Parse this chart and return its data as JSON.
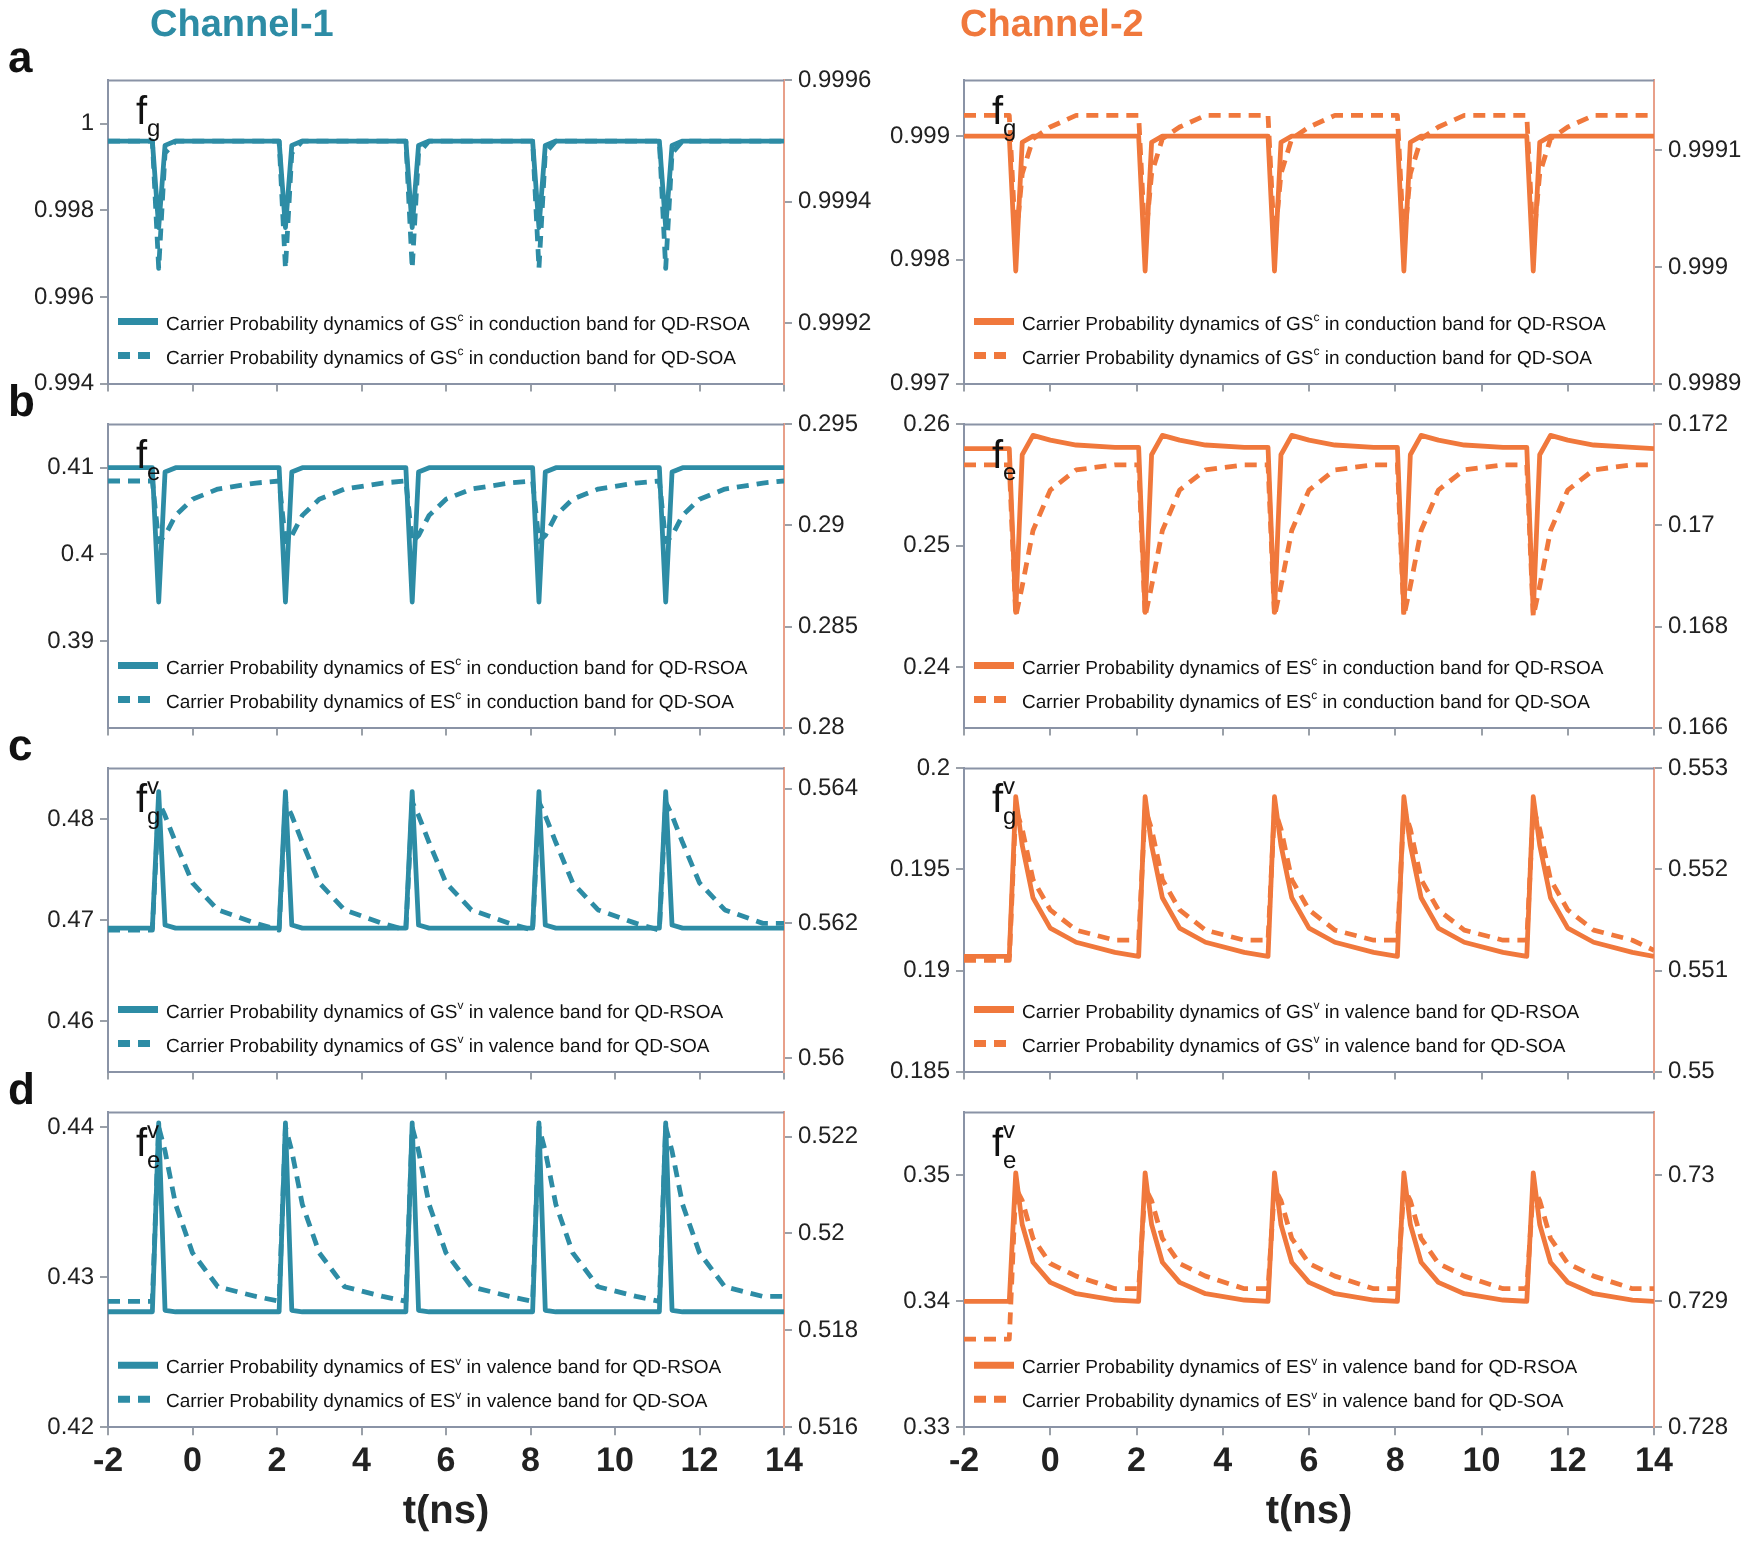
{
  "chart_data": [
    {
      "type": "line",
      "title": "Channel-1",
      "annotations": [
        "a",
        "f$_{g}$"
      ],
      "legend": "bottom left",
      "tick_labels": "y",
      "x": [
        -2,
        -0.95,
        -0.8,
        -0.65,
        -0.4,
        0,
        0.6,
        1.5,
        2.05,
        2.2,
        2.35,
        2.6,
        3,
        3.6,
        4.5,
        5.05,
        5.2,
        5.35,
        5.6,
        6,
        6.6,
        7.5,
        8.05,
        8.2,
        8.35,
        8.6,
        9,
        9.6,
        10.5,
        11.05,
        11.2,
        11.35,
        11.6,
        12,
        12.6,
        13.5,
        14
      ],
      "xlim": [
        -2,
        14
      ],
      "xticks": [
        -2,
        0,
        2,
        4,
        6,
        8,
        10,
        12,
        14
      ],
      "ylim": [
        0.994,
        1.001
      ],
      "yticks": [
        0.994,
        0.996,
        0.998,
        1
      ],
      "y2lim": [
        0.9991,
        0.9996
      ],
      "y2ticks": [
        0.9992,
        0.9994,
        0.9996
      ],
      "series": [
        {
          "name": "Carrier Probability dynamics of GS$^{c}$ in conduction band for QD-RSOA",
          "color": "#2d8ca5",
          "line_style": "solid",
          "values": [
            0.9996,
            0.9996,
            0.9976,
            0.9995,
            0.9996,
            0.9996,
            0.9996,
            0.9996,
            0.9996,
            0.9976,
            0.9995,
            0.9996,
            0.9996,
            0.9996,
            0.9996,
            0.9996,
            0.9976,
            0.9995,
            0.9996,
            0.9996,
            0.9996,
            0.9996,
            0.9996,
            0.9976,
            0.9995,
            0.9996,
            0.9996,
            0.9996,
            0.9996,
            0.9996,
            0.9976,
            0.9995,
            0.9996,
            0.9996,
            0.9996,
            0.9996,
            0.9996
          ]
        },
        {
          "name": "Carrier Probability dynamics of GS$^{c}$ in conduction band for QD-SOA",
          "color": "#2d8ca5",
          "line_style": "dashed",
          "axis": "y2",
          "values": [
            0.9995,
            0.9995,
            0.99929,
            0.99948,
            0.9995,
            0.9995,
            0.9995,
            0.9995,
            0.9995,
            0.99929,
            0.99948,
            0.9995,
            0.9995,
            0.9995,
            0.9995,
            0.9995,
            0.99929,
            0.99948,
            0.9995,
            0.9995,
            0.9995,
            0.9995,
            0.9995,
            0.99929,
            0.99948,
            0.9995,
            0.9995,
            0.9995,
            0.9995,
            0.9995,
            0.99929,
            0.99948,
            0.9995,
            0.9995,
            0.9995,
            0.9995,
            0.9995
          ]
        }
      ]
    },
    {
      "type": "line",
      "title": "Channel-2",
      "annotations": [
        "f$_{g}$"
      ],
      "legend": "bottom left",
      "tick_labels": "y",
      "x": [
        -2,
        -0.95,
        -0.8,
        -0.65,
        -0.4,
        0,
        0.6,
        1.5,
        2.05,
        2.2,
        2.35,
        2.6,
        3,
        3.6,
        4.5,
        5.05,
        5.2,
        5.35,
        5.6,
        6,
        6.6,
        7.5,
        8.05,
        8.2,
        8.35,
        8.6,
        9,
        9.6,
        10.5,
        11.05,
        11.2,
        11.35,
        11.6,
        12,
        12.6,
        13.5,
        14
      ],
      "xlim": [
        -2,
        14
      ],
      "xticks": [
        -2,
        0,
        2,
        4,
        6,
        8,
        10,
        12,
        14
      ],
      "ylim": [
        0.997,
        0.99945
      ],
      "yticks": [
        0.997,
        0.998,
        0.999
      ],
      "y2lim": [
        0.9989,
        0.99916
      ],
      "y2ticks": [
        0.9989,
        0.999,
        0.9991
      ],
      "series": [
        {
          "name": "Carrier Probability dynamics of GS$^{c}$ in conduction band for QD-RSOA",
          "color": "#f0783c",
          "line_style": "solid",
          "values": [
            0.999,
            0.999,
            0.99791,
            0.99895,
            0.999,
            0.999,
            0.999,
            0.999,
            0.999,
            0.99791,
            0.99895,
            0.999,
            0.999,
            0.999,
            0.999,
            0.999,
            0.99791,
            0.99895,
            0.999,
            0.999,
            0.999,
            0.999,
            0.999,
            0.99791,
            0.99895,
            0.999,
            0.999,
            0.999,
            0.999,
            0.999,
            0.99791,
            0.99895,
            0.999,
            0.999,
            0.999,
            0.999,
            0.999
          ]
        },
        {
          "name": "Carrier Probability dynamics of GS$^{c}$ in conduction band for QD-SOA",
          "color": "#f0783c",
          "line_style": "dashed",
          "axis": "y2",
          "values": [
            0.99913,
            0.99913,
            0.99902,
            0.99908,
            0.99911,
            0.99912,
            0.99913,
            0.99913,
            0.99913,
            0.99902,
            0.99908,
            0.99911,
            0.99912,
            0.99913,
            0.99913,
            0.99913,
            0.99902,
            0.99908,
            0.99911,
            0.99912,
            0.99913,
            0.99913,
            0.99913,
            0.99902,
            0.99908,
            0.99911,
            0.99912,
            0.99913,
            0.99913,
            0.99913,
            0.99902,
            0.99908,
            0.99911,
            0.99912,
            0.99913,
            0.99913,
            0.99913
          ]
        }
      ]
    },
    {
      "type": "line",
      "annotations": [
        "b",
        "f$_{e}$"
      ],
      "legend": "bottom left",
      "tick_labels": "y",
      "x": [
        -2,
        -0.95,
        -0.8,
        -0.65,
        -0.4,
        0,
        0.6,
        1.5,
        2.05,
        2.2,
        2.35,
        2.6,
        3,
        3.6,
        4.5,
        5.05,
        5.2,
        5.35,
        5.6,
        6,
        6.6,
        7.5,
        8.05,
        8.2,
        8.35,
        8.6,
        9,
        9.6,
        10.5,
        11.05,
        11.2,
        11.35,
        11.6,
        12,
        12.6,
        13.5,
        14
      ],
      "xlim": [
        -2,
        14
      ],
      "xticks": [
        -2,
        0,
        2,
        4,
        6,
        8,
        10,
        12,
        14
      ],
      "ylim": [
        0.38,
        0.415
      ],
      "yticks": [
        0.39,
        0.4,
        0.41
      ],
      "y2lim": [
        0.28,
        0.295
      ],
      "y2ticks": [
        0.28,
        0.285,
        0.29,
        0.295
      ],
      "series": [
        {
          "name": "Carrier Probability dynamics of ES$^{c}$ in conduction band for QD-RSOA",
          "color": "#2d8ca5",
          "line_style": "solid",
          "values": [
            0.41,
            0.41,
            0.3945,
            0.4095,
            0.41,
            0.41,
            0.41,
            0.41,
            0.41,
            0.3945,
            0.4095,
            0.41,
            0.41,
            0.41,
            0.41,
            0.41,
            0.3945,
            0.4095,
            0.41,
            0.41,
            0.41,
            0.41,
            0.41,
            0.3945,
            0.4095,
            0.41,
            0.41,
            0.41,
            0.41,
            0.41,
            0.3945,
            0.4095,
            0.41,
            0.41,
            0.41,
            0.41,
            0.41
          ]
        },
        {
          "name": "Carrier Probability dynamics of ES$^{c}$ in conduction band for QD-SOA",
          "color": "#2d8ca5",
          "line_style": "dashed",
          "axis": "y2",
          "values": [
            0.2922,
            0.2922,
            0.2892,
            0.2895,
            0.2905,
            0.2913,
            0.2918,
            0.2921,
            0.2922,
            0.2892,
            0.2895,
            0.2905,
            0.2913,
            0.2918,
            0.2921,
            0.2922,
            0.2892,
            0.2895,
            0.2905,
            0.2913,
            0.2918,
            0.2921,
            0.2922,
            0.2892,
            0.2895,
            0.2905,
            0.2913,
            0.2918,
            0.2921,
            0.2922,
            0.2892,
            0.2895,
            0.2905,
            0.2913,
            0.2918,
            0.2921,
            0.2922
          ]
        }
      ]
    },
    {
      "type": "line",
      "annotations": [
        "f$_{e}$"
      ],
      "legend": "bottom left",
      "tick_labels": "y",
      "x": [
        -2,
        -0.95,
        -0.8,
        -0.65,
        -0.4,
        0,
        0.6,
        1.5,
        2.05,
        2.2,
        2.35,
        2.6,
        3,
        3.6,
        4.5,
        5.05,
        5.2,
        5.35,
        5.6,
        6,
        6.6,
        7.5,
        8.05,
        8.2,
        8.35,
        8.6,
        9,
        9.6,
        10.5,
        11.05,
        11.2,
        11.35,
        11.6,
        12,
        12.6,
        13.5,
        14
      ],
      "xlim": [
        -2,
        14
      ],
      "xticks": [
        -2,
        0,
        2,
        4,
        6,
        8,
        10,
        12,
        14
      ],
      "ylim": [
        0.235,
        0.26
      ],
      "yticks": [
        0.24,
        0.25,
        0.26
      ],
      "y2lim": [
        0.166,
        0.172
      ],
      "y2ticks": [
        0.166,
        0.168,
        0.17,
        0.172
      ],
      "series": [
        {
          "name": "Carrier Probability dynamics of ES$^{c}$ in conduction band for QD-RSOA",
          "color": "#f0783c",
          "line_style": "solid",
          "values": [
            0.258,
            0.258,
            0.2445,
            0.2575,
            0.2591,
            0.2587,
            0.2583,
            0.2581,
            0.2581,
            0.2445,
            0.2575,
            0.2591,
            0.2587,
            0.2583,
            0.2581,
            0.2581,
            0.2445,
            0.2575,
            0.2591,
            0.2587,
            0.2583,
            0.2581,
            0.2581,
            0.2445,
            0.2575,
            0.2591,
            0.2587,
            0.2583,
            0.2581,
            0.2581,
            0.2445,
            0.2575,
            0.2591,
            0.2587,
            0.2583,
            0.2581,
            0.258
          ]
        },
        {
          "name": "Carrier Probability dynamics of ES$^{c}$ in conduction band for QD-SOA",
          "color": "#f0783c",
          "line_style": "dashed",
          "axis": "y2",
          "values": [
            0.1712,
            0.1712,
            0.1682,
            0.1688,
            0.1699,
            0.1707,
            0.1711,
            0.1712,
            0.1712,
            0.1682,
            0.1688,
            0.1699,
            0.1707,
            0.1711,
            0.1712,
            0.1712,
            0.1682,
            0.1688,
            0.1699,
            0.1707,
            0.1711,
            0.1712,
            0.1712,
            0.1682,
            0.1688,
            0.1699,
            0.1707,
            0.1711,
            0.1712,
            0.1712,
            0.1682,
            0.1688,
            0.1699,
            0.1707,
            0.1711,
            0.1712,
            0.1712
          ]
        }
      ]
    },
    {
      "type": "line",
      "annotations": [
        "c",
        "f$_{g}$$^{v}$"
      ],
      "legend": "bottom left",
      "tick_labels": "y",
      "x": [
        -2,
        -0.95,
        -0.8,
        -0.65,
        -0.4,
        0,
        0.6,
        1.5,
        2.05,
        2.2,
        2.35,
        2.6,
        3,
        3.6,
        4.5,
        5.05,
        5.2,
        5.35,
        5.6,
        6,
        6.6,
        7.5,
        8.05,
        8.2,
        8.35,
        8.6,
        9,
        9.6,
        10.5,
        11.05,
        11.2,
        11.35,
        11.6,
        12,
        12.6,
        13.5,
        14
      ],
      "xlim": [
        -2,
        14
      ],
      "xticks": [
        -2,
        0,
        2,
        4,
        6,
        8,
        10,
        12,
        14
      ],
      "ylim": [
        0.455,
        0.485
      ],
      "yticks": [
        0.46,
        0.47,
        0.48
      ],
      "y2lim": [
        0.5598,
        0.5643
      ],
      "y2ticks": [
        0.56,
        0.562,
        0.564
      ],
      "series": [
        {
          "name": "Carrier Probability dynamics of GS$^{v}$ in valence band for QD-RSOA",
          "color": "#2d8ca5",
          "line_style": "solid",
          "values": [
            0.4692,
            0.4692,
            0.4827,
            0.4695,
            0.4692,
            0.4692,
            0.4692,
            0.4692,
            0.4692,
            0.4827,
            0.4695,
            0.4692,
            0.4692,
            0.4692,
            0.4692,
            0.4692,
            0.4827,
            0.4695,
            0.4692,
            0.4692,
            0.4692,
            0.4692,
            0.4692,
            0.4827,
            0.4695,
            0.4692,
            0.4692,
            0.4692,
            0.4692,
            0.4692,
            0.4827,
            0.4695,
            0.4692,
            0.4692,
            0.4692,
            0.4692,
            0.4692
          ]
        },
        {
          "name": "Carrier Probability dynamics of GS$^{v}$ in valence band for QD-SOA",
          "color": "#2d8ca5",
          "line_style": "dashed",
          "axis": "y2",
          "values": [
            0.5619,
            0.5619,
            0.5638,
            0.5636,
            0.5632,
            0.5626,
            0.5622,
            0.562,
            0.5619,
            0.5638,
            0.5636,
            0.5632,
            0.5626,
            0.5622,
            0.562,
            0.5619,
            0.5638,
            0.5636,
            0.5632,
            0.5626,
            0.5622,
            0.562,
            0.5619,
            0.5638,
            0.5636,
            0.5632,
            0.5626,
            0.5622,
            0.562,
            0.5619,
            0.5638,
            0.5636,
            0.5632,
            0.5626,
            0.5622,
            0.562,
            0.562
          ]
        }
      ]
    },
    {
      "type": "line",
      "annotations": [
        "f$_{g}$$^{v}$"
      ],
      "legend": "bottom left",
      "tick_labels": "y",
      "x": [
        -2,
        -0.95,
        -0.8,
        -0.65,
        -0.4,
        0,
        0.6,
        1.5,
        2.05,
        2.2,
        2.35,
        2.6,
        3,
        3.6,
        4.5,
        5.05,
        5.2,
        5.35,
        5.6,
        6,
        6.6,
        7.5,
        8.05,
        8.2,
        8.35,
        8.6,
        9,
        9.6,
        10.5,
        11.05,
        11.2,
        11.35,
        11.6,
        12,
        12.6,
        13.5,
        14
      ],
      "xlim": [
        -2,
        14
      ],
      "xticks": [
        -2,
        0,
        2,
        4,
        6,
        8,
        10,
        12,
        14
      ],
      "ylim": [
        0.185,
        0.2
      ],
      "yticks": [
        0.185,
        0.19,
        0.195,
        0.2
      ],
      "y2lim": [
        0.55,
        0.553
      ],
      "y2ticks": [
        0.55,
        0.551,
        0.552,
        0.553
      ],
      "series": [
        {
          "name": "Carrier Probability dynamics of GS$^{v}$ in valence band for QD-RSOA",
          "color": "#f0783c",
          "line_style": "solid",
          "values": [
            0.1907,
            0.1907,
            0.1986,
            0.1962,
            0.1936,
            0.1921,
            0.1914,
            0.1909,
            0.1907,
            0.1986,
            0.1962,
            0.1936,
            0.1921,
            0.1914,
            0.1909,
            0.1907,
            0.1986,
            0.1962,
            0.1936,
            0.1921,
            0.1914,
            0.1909,
            0.1907,
            0.1986,
            0.1962,
            0.1936,
            0.1921,
            0.1914,
            0.1909,
            0.1907,
            0.1986,
            0.1962,
            0.1936,
            0.1921,
            0.1914,
            0.1909,
            0.1907
          ]
        },
        {
          "name": "Carrier Probability dynamics of GS$^{v}$ in valence band for QD-SOA",
          "color": "#f0783c",
          "line_style": "dashed",
          "axis": "y2",
          "values": [
            0.5511,
            0.5511,
            0.5526,
            0.5524,
            0.5519,
            0.5516,
            0.5514,
            0.5513,
            0.5513,
            0.5526,
            0.5524,
            0.5519,
            0.5516,
            0.5514,
            0.5513,
            0.5513,
            0.5526,
            0.5524,
            0.5519,
            0.5516,
            0.5514,
            0.5513,
            0.5513,
            0.5526,
            0.5524,
            0.5519,
            0.5516,
            0.5514,
            0.5513,
            0.5513,
            0.5526,
            0.5524,
            0.5519,
            0.5516,
            0.5514,
            0.5513,
            0.5512
          ]
        }
      ]
    },
    {
      "type": "line",
      "annotations": [
        "d",
        "f$_{e}$$^{v}$"
      ],
      "legend": "bottom left",
      "xlabel": "t(ns)",
      "x": [
        -2,
        -0.95,
        -0.8,
        -0.65,
        -0.4,
        0,
        0.6,
        1.5,
        2.05,
        2.2,
        2.35,
        2.6,
        3,
        3.6,
        4.5,
        5.05,
        5.2,
        5.35,
        5.6,
        6,
        6.6,
        7.5,
        8.05,
        8.2,
        8.35,
        8.6,
        9,
        9.6,
        10.5,
        11.05,
        11.2,
        11.35,
        11.6,
        12,
        12.6,
        13.5,
        14
      ],
      "xlim": [
        -2,
        14
      ],
      "xticks": [
        -2,
        0,
        2,
        4,
        6,
        8,
        10,
        12,
        14
      ],
      "ylim": [
        0.42,
        0.441
      ],
      "yticks": [
        0.42,
        0.43,
        0.44
      ],
      "y2lim": [
        0.516,
        0.5225
      ],
      "y2ticks": [
        0.516,
        0.518,
        0.52,
        0.522
      ],
      "series": [
        {
          "name": "Carrier Probability dynamics of ES$^{v}$ in valence band for QD-RSOA",
          "color": "#2d8ca5",
          "line_style": "solid",
          "values": [
            0.4277,
            0.4277,
            0.4403,
            0.4278,
            0.4277,
            0.4277,
            0.4277,
            0.4277,
            0.4277,
            0.4403,
            0.4278,
            0.4277,
            0.4277,
            0.4277,
            0.4277,
            0.4277,
            0.4403,
            0.4278,
            0.4277,
            0.4277,
            0.4277,
            0.4277,
            0.4277,
            0.4403,
            0.4278,
            0.4277,
            0.4277,
            0.4277,
            0.4277,
            0.4277,
            0.4403,
            0.4278,
            0.4277,
            0.4277,
            0.4277,
            0.4277,
            0.4277
          ]
        },
        {
          "name": "Carrier Probability dynamics of ES$^{v}$ in valence band for QD-SOA",
          "color": "#2d8ca5",
          "line_style": "dashed",
          "axis": "y2",
          "values": [
            0.5186,
            0.5186,
            0.5222,
            0.5217,
            0.5206,
            0.5196,
            0.5189,
            0.5187,
            0.5186,
            0.5222,
            0.5217,
            0.5206,
            0.5196,
            0.5189,
            0.5187,
            0.5186,
            0.5222,
            0.5217,
            0.5206,
            0.5196,
            0.5189,
            0.5187,
            0.5186,
            0.5222,
            0.5217,
            0.5206,
            0.5196,
            0.5189,
            0.5187,
            0.5186,
            0.5222,
            0.5217,
            0.5206,
            0.5196,
            0.5189,
            0.5187,
            0.5187
          ]
        }
      ]
    },
    {
      "type": "line",
      "annotations": [
        "f$_{e}$$^{v}$"
      ],
      "legend": "bottom left",
      "xlabel": "t(ns)",
      "x": [
        -2,
        -0.95,
        -0.8,
        -0.65,
        -0.4,
        0,
        0.6,
        1.5,
        2.05,
        2.2,
        2.35,
        2.6,
        3,
        3.6,
        4.5,
        5.05,
        5.2,
        5.35,
        5.6,
        6,
        6.6,
        7.5,
        8.05,
        8.2,
        8.35,
        8.6,
        9,
        9.6,
        10.5,
        11.05,
        11.2,
        11.35,
        11.6,
        12,
        12.6,
        13.5,
        14
      ],
      "xlim": [
        -2,
        14
      ],
      "xticks": [
        -2,
        0,
        2,
        4,
        6,
        8,
        10,
        12,
        14
      ],
      "ylim": [
        0.33,
        0.355
      ],
      "yticks": [
        0.33,
        0.34,
        0.35
      ],
      "y2lim": [
        0.728,
        0.7305
      ],
      "y2ticks": [
        0.728,
        0.729,
        0.73
      ],
      "series": [
        {
          "name": "Carrier Probability dynamics of ES$^{v}$ in valence band for QD-RSOA",
          "color": "#f0783c",
          "line_style": "solid",
          "values": [
            0.34,
            0.34,
            0.3502,
            0.3461,
            0.3431,
            0.3415,
            0.3406,
            0.3401,
            0.34,
            0.3502,
            0.3461,
            0.3431,
            0.3415,
            0.3406,
            0.3401,
            0.34,
            0.3502,
            0.3461,
            0.3431,
            0.3415,
            0.3406,
            0.3401,
            0.34,
            0.3502,
            0.3461,
            0.3431,
            0.3415,
            0.3406,
            0.3401,
            0.34,
            0.3502,
            0.3461,
            0.3431,
            0.3415,
            0.3406,
            0.3401,
            0.34
          ]
        },
        {
          "name": "Carrier Probability dynamics of ES$^{v}$ in valence band for QD-SOA",
          "color": "#f0783c",
          "line_style": "dashed",
          "axis": "y2",
          "values": [
            0.7287,
            0.7287,
            0.7299,
            0.7298,
            0.7295,
            0.7293,
            0.7292,
            0.7291,
            0.7291,
            0.7299,
            0.7298,
            0.7295,
            0.7293,
            0.7292,
            0.7291,
            0.7291,
            0.7299,
            0.7298,
            0.7295,
            0.7293,
            0.7292,
            0.7291,
            0.7291,
            0.7299,
            0.7298,
            0.7295,
            0.7293,
            0.7292,
            0.7291,
            0.7291,
            0.7299,
            0.7298,
            0.7295,
            0.7293,
            0.7292,
            0.7291,
            0.7291
          ]
        }
      ]
    }
  ]
}
